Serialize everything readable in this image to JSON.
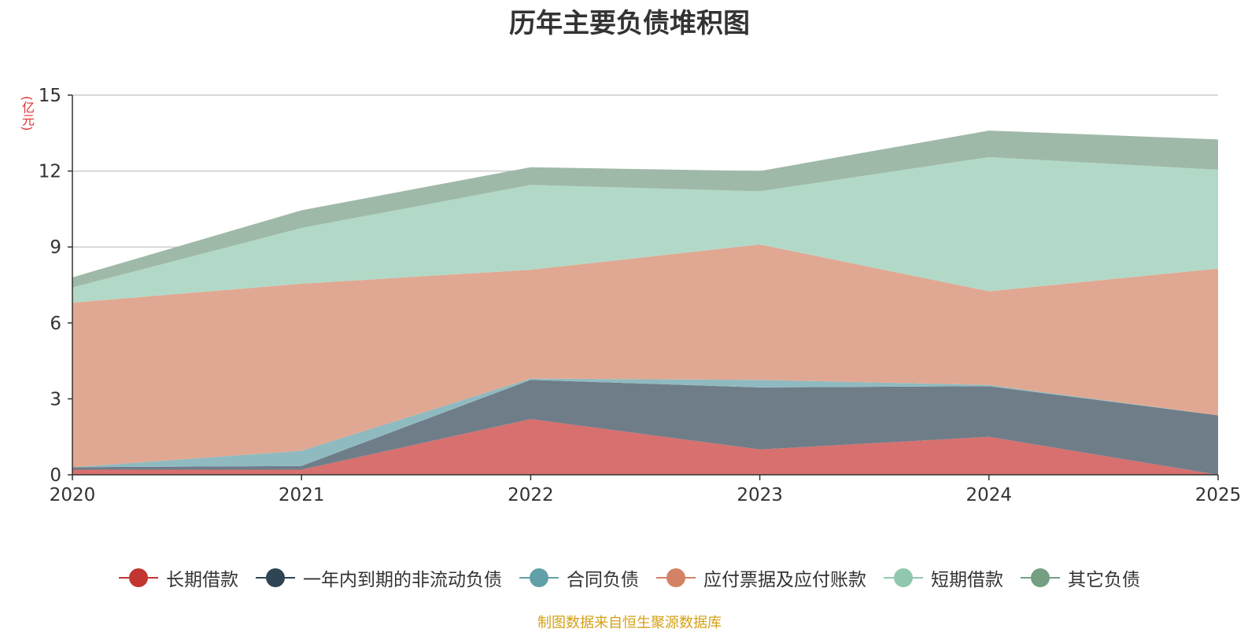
{
  "chart_data": {
    "type": "area",
    "stacked": true,
    "title": "历年主要负债堆积图",
    "ylabel": "(亿元)",
    "categories": [
      "2020",
      "2021",
      "2022",
      "2023",
      "2024",
      "2025"
    ],
    "ylim": [
      0,
      15
    ],
    "yticks": [
      0,
      3,
      6,
      9,
      12,
      15
    ],
    "series": [
      {
        "name": "长期借款",
        "color": "#c23531",
        "fill": "#d7706e",
        "values": [
          0.2,
          0.2,
          2.2,
          1.0,
          1.5,
          0.0
        ]
      },
      {
        "name": "一年内到期的非流动负债",
        "color": "#2f4554",
        "fill": "#6f7d89",
        "values": [
          0.1,
          0.15,
          1.55,
          2.45,
          2.0,
          2.35
        ]
      },
      {
        "name": "合同负债",
        "color": "#61a0a8",
        "fill": "#8fbac0",
        "values": [
          0.0,
          0.6,
          0.05,
          0.3,
          0.05,
          0.0
        ]
      },
      {
        "name": "应付票据及应付账款",
        "color": "#d48265",
        "fill": "#e0a892",
        "values": [
          6.5,
          6.6,
          4.3,
          5.35,
          3.7,
          5.8
        ]
      },
      {
        "name": "短期借款",
        "color": "#91c7ae",
        "fill": "#b2d9c8",
        "values": [
          0.6,
          2.2,
          3.35,
          2.1,
          5.3,
          3.9
        ]
      },
      {
        "name": "其它负债",
        "color": "#749f83",
        "fill": "#9fb9a8",
        "values": [
          0.4,
          0.7,
          0.7,
          0.8,
          1.05,
          1.2
        ]
      }
    ],
    "legend_position": "bottom",
    "grid": true
  },
  "source": "制图数据来自恒生聚源数据库"
}
